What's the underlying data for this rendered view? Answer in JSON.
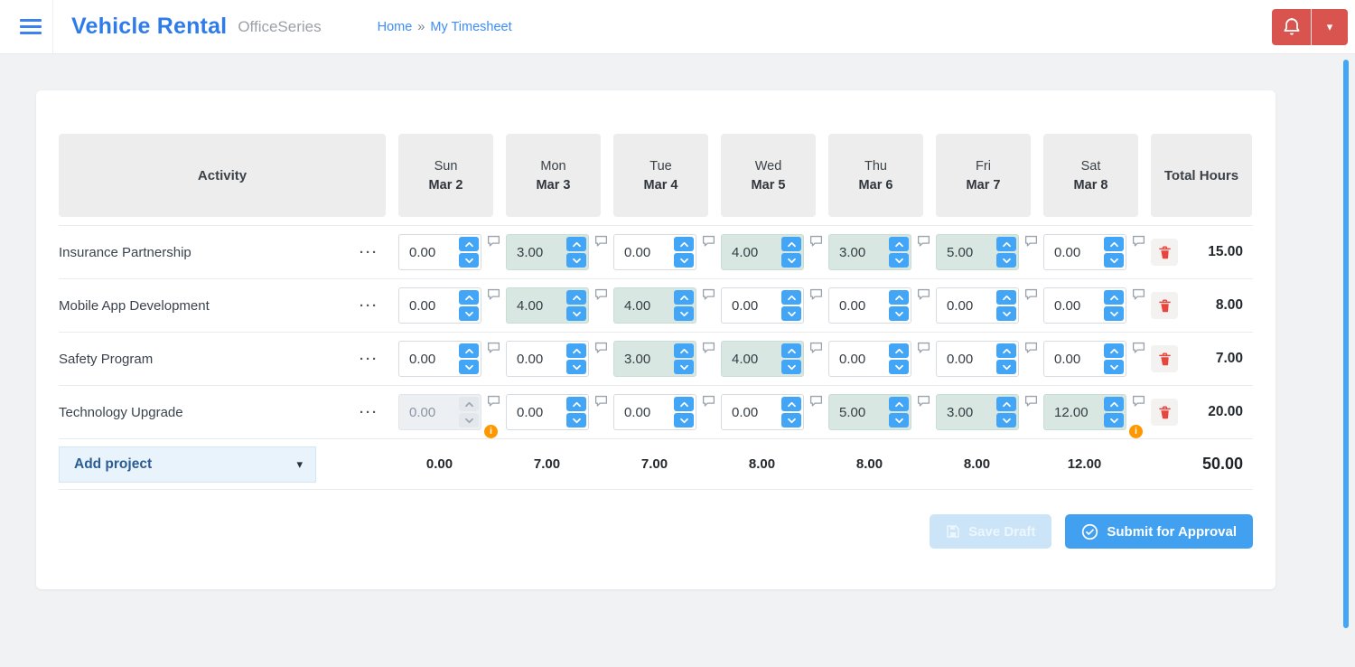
{
  "navbar": {
    "brand": "Vehicle Rental",
    "suite": "OfficeSeries",
    "breadcrumb": {
      "home": "Home",
      "separator": "»",
      "current": "My Timesheet"
    }
  },
  "icons": {
    "menu-icon": "≡",
    "notification-bell-icon": "🔔",
    "caret-down-icon": "▾",
    "row-menu-icon": "···",
    "comment-icon": "💬",
    "info-icon": "i",
    "delete-icon": "🗑",
    "save-icon": "💾",
    "check-circle-icon": "✓"
  },
  "colors": {
    "accent_blue": "#42a5f5",
    "brand_blue": "#2e7bec",
    "link_blue": "#3f8df5",
    "danger_red": "#d9534f",
    "filled_cell": "#d8e7e1",
    "warning_orange": "#ff9800",
    "trash_red": "#e8453c"
  },
  "timesheet": {
    "columns": {
      "activity": "Activity",
      "days": [
        {
          "day": "Sun",
          "date": "Mar 2"
        },
        {
          "day": "Mon",
          "date": "Mar 3"
        },
        {
          "day": "Tue",
          "date": "Mar 4"
        },
        {
          "day": "Wed",
          "date": "Mar 5"
        },
        {
          "day": "Thu",
          "date": "Mar 6"
        },
        {
          "day": "Fri",
          "date": "Mar 7"
        },
        {
          "day": "Sat",
          "date": "Mar 8"
        }
      ],
      "total": "Total Hours"
    },
    "rows": [
      {
        "activity": "Insurance Partnership",
        "values": [
          "0.00",
          "3.00",
          "0.00",
          "4.00",
          "3.00",
          "5.00",
          "0.00"
        ],
        "total": "15.00"
      },
      {
        "activity": "Mobile App Development",
        "values": [
          "0.00",
          "4.00",
          "4.00",
          "0.00",
          "0.00",
          "0.00",
          "0.00"
        ],
        "total": "8.00"
      },
      {
        "activity": "Safety Program",
        "values": [
          "0.00",
          "0.00",
          "3.00",
          "4.00",
          "0.00",
          "0.00",
          "0.00"
        ],
        "total": "7.00"
      },
      {
        "activity": "Technology Upgrade",
        "values": [
          "0.00",
          "0.00",
          "0.00",
          "0.00",
          "5.00",
          "3.00",
          "12.00"
        ],
        "total": "20.00",
        "disabled": [
          0
        ],
        "info": [
          0,
          6
        ]
      }
    ],
    "footer": {
      "add_project_label": "Add project",
      "day_totals": [
        "0.00",
        "7.00",
        "7.00",
        "8.00",
        "8.00",
        "8.00",
        "12.00"
      ],
      "grand_total": "50.00"
    },
    "actions": {
      "save_draft": "Save Draft",
      "submit": "Submit for Approval"
    }
  }
}
